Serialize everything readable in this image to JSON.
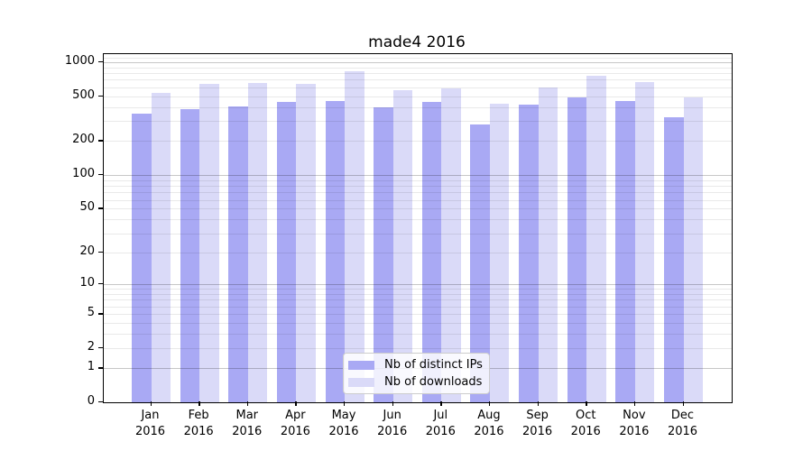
{
  "chart_data": {
    "type": "bar",
    "title": "made4 2016",
    "categories": [
      "Jan",
      "Feb",
      "Mar",
      "Apr",
      "May",
      "Jun",
      "Jul",
      "Aug",
      "Sep",
      "Oct",
      "Nov",
      "Dec"
    ],
    "x_year_label": "2016",
    "series": [
      {
        "name": "Nb of distinct IPs",
        "color": "#a9a9f4",
        "values": [
          350,
          384,
          405,
          449,
          455,
          400,
          447,
          280,
          421,
          490,
          455,
          327
        ]
      },
      {
        "name": "Nb of downloads",
        "color": "#dadaf8",
        "values": [
          537,
          645,
          653,
          648,
          827,
          567,
          581,
          428,
          597,
          764,
          672,
          492
        ]
      }
    ],
    "yscale": "log10(value+1)",
    "yticks": [
      0,
      1,
      2,
      5,
      10,
      20,
      50,
      100,
      200,
      500,
      1000
    ],
    "major_grid_values": [
      1,
      10,
      100,
      1000
    ],
    "ylim": [
      0,
      1176
    ],
    "grid": "horizontal",
    "legend_position": "inside-bottom-center"
  }
}
